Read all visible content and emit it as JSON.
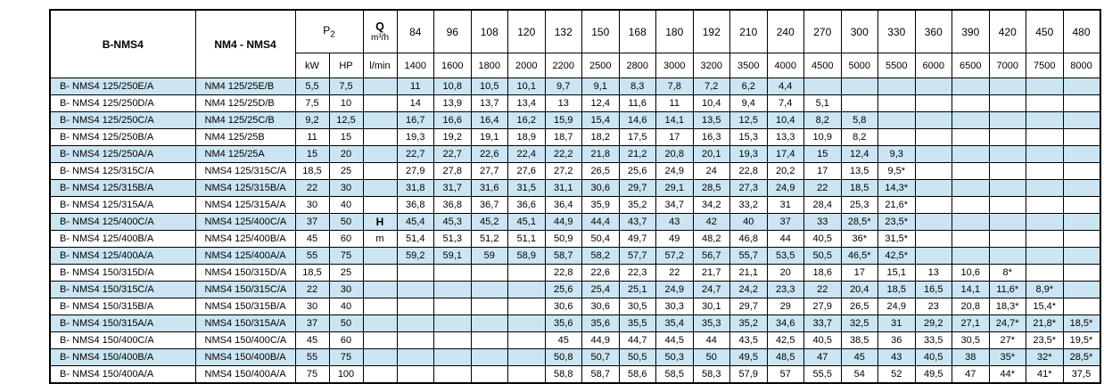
{
  "table": {
    "colors": {
      "row_alt": "#cbe5f2",
      "row_plain": "#ffffff",
      "border": "#000000",
      "header_bg": "#ffffff"
    },
    "header": {
      "model_b_label": "B-NMS4",
      "model_nm_label": "NM4 - NMS4",
      "p2_main": "P",
      "p2_sub": "2",
      "kw_label": "kW",
      "hp_label": "HP",
      "q_label": "Q",
      "q_unit": "m³/h",
      "lmin_label": "l/min",
      "flow_m3h": [
        "84",
        "96",
        "108",
        "120",
        "132",
        "150",
        "168",
        "180",
        "192",
        "210",
        "240",
        "270",
        "300",
        "330",
        "360",
        "390",
        "420",
        "450",
        "480"
      ],
      "flow_lmin": [
        "1400",
        "1600",
        "1800",
        "2000",
        "2200",
        "2500",
        "2800",
        "3000",
        "3200",
        "3500",
        "4000",
        "4500",
        "5000",
        "5500",
        "6000",
        "6500",
        "7000",
        "7500",
        "8000"
      ]
    },
    "head_meters": {
      "label": "H",
      "unit": "m",
      "label_row": 8,
      "unit_row": 9
    },
    "rows": [
      {
        "model_b": "B- NMS4 125/250E/A",
        "model_nm": "NM4 125/25E/B",
        "kw": "5,5",
        "hp": "7,5",
        "values": [
          "11",
          "10,8",
          "10,5",
          "10,1",
          "9,7",
          "9,1",
          "8,3",
          "7,8",
          "7,2",
          "6,2",
          "4,4",
          "",
          "",
          "",
          "",
          "",
          "",
          "",
          ""
        ]
      },
      {
        "model_b": "B- NMS4 125/250D/A",
        "model_nm": "NM4 125/25D/B",
        "kw": "7,5",
        "hp": "10",
        "values": [
          "14",
          "13,9",
          "13,7",
          "13,4",
          "13",
          "12,4",
          "11,6",
          "11",
          "10,4",
          "9,4",
          "7,4",
          "5,1",
          "",
          "",
          "",
          "",
          "",
          "",
          ""
        ]
      },
      {
        "model_b": "B- NMS4 125/250C/A",
        "model_nm": "NM4 125/25C/B",
        "kw": "9,2",
        "hp": "12,5",
        "values": [
          "16,7",
          "16,6",
          "16,4",
          "16,2",
          "15,9",
          "15,4",
          "14,6",
          "14,1",
          "13,5",
          "12,5",
          "10,4",
          "8,2",
          "5,8",
          "",
          "",
          "",
          "",
          "",
          ""
        ]
      },
      {
        "model_b": "B- NMS4 125/250B/A",
        "model_nm": "NM4 125/25B",
        "kw": "11",
        "hp": "15",
        "values": [
          "19,3",
          "19,2",
          "19,1",
          "18,9",
          "18,7",
          "18,2",
          "17,5",
          "17",
          "16,3",
          "15,3",
          "13,3",
          "10,9",
          "8,2",
          "",
          "",
          "",
          "",
          "",
          ""
        ]
      },
      {
        "model_b": "B- NMS4 125/250A/A",
        "model_nm": "NM4 125/25A",
        "kw": "15",
        "hp": "20",
        "values": [
          "22,7",
          "22,7",
          "22,6",
          "22,4",
          "22,2",
          "21,8",
          "21,2",
          "20,8",
          "20,1",
          "19,3",
          "17,4",
          "15",
          "12,4",
          "9,3",
          "",
          "",
          "",
          "",
          ""
        ]
      },
      {
        "model_b": "B- NMS4 125/315C/A",
        "model_nm": "NMS4 125/315C/A",
        "kw": "18,5",
        "hp": "25",
        "values": [
          "27,9",
          "27,8",
          "27,7",
          "27,6",
          "27,2",
          "26,5",
          "25,6",
          "24,9",
          "24",
          "22,8",
          "20,2",
          "17",
          "13,5",
          "9,5*",
          "",
          "",
          "",
          "",
          ""
        ]
      },
      {
        "model_b": "B- NMS4 125/315B/A",
        "model_nm": "NMS4 125/315B/A",
        "kw": "22",
        "hp": "30",
        "values": [
          "31,8",
          "31,7",
          "31,6",
          "31,5",
          "31,1",
          "30,6",
          "29,7",
          "29,1",
          "28,5",
          "27,3",
          "24,9",
          "22",
          "18,5",
          "14,3*",
          "",
          "",
          "",
          "",
          ""
        ]
      },
      {
        "model_b": "B- NMS4 125/315A/A",
        "model_nm": "NMS4 125/315A/A",
        "kw": "30",
        "hp": "40",
        "values": [
          "36,8",
          "36,8",
          "36,7",
          "36,6",
          "36,4",
          "35,9",
          "35,2",
          "34,7",
          "34,2",
          "33,2",
          "31",
          "28,4",
          "25,3",
          "21,6*",
          "",
          "",
          "",
          "",
          ""
        ]
      },
      {
        "model_b": "B- NMS4 125/400C/A",
        "model_nm": "NMS4 125/400C/A",
        "kw": "37",
        "hp": "50",
        "values": [
          "45,4",
          "45,3",
          "45,2",
          "45,1",
          "44,9",
          "44,4",
          "43,7",
          "43",
          "42",
          "40",
          "37",
          "33",
          "28,5*",
          "23,5*",
          "",
          "",
          "",
          "",
          ""
        ]
      },
      {
        "model_b": "B- NMS4 125/400B/A",
        "model_nm": "NMS4 125/400B/A",
        "kw": "45",
        "hp": "60",
        "values": [
          "51,4",
          "51,3",
          "51,2",
          "51,1",
          "50,9",
          "50,4",
          "49,7",
          "49",
          "48,2",
          "46,8",
          "44",
          "40,5",
          "36*",
          "31,5*",
          "",
          "",
          "",
          "",
          ""
        ]
      },
      {
        "model_b": "B- NMS4 125/400A/A",
        "model_nm": "NMS4 125/400A/A",
        "kw": "55",
        "hp": "75",
        "values": [
          "59,2",
          "59,1",
          "59",
          "58,9",
          "58,7",
          "58,2",
          "57,7",
          "57,2",
          "56,7",
          "55,7",
          "53,5",
          "50,5",
          "46,5*",
          "42,5*",
          "",
          "",
          "",
          "",
          ""
        ]
      },
      {
        "model_b": "B- NMS4 150/315D/A",
        "model_nm": "NMS4 150/315D/A",
        "kw": "18,5",
        "hp": "25",
        "values": [
          "",
          "",
          "",
          "",
          "22,8",
          "22,6",
          "22,3",
          "22",
          "21,7",
          "21,1",
          "20",
          "18,6",
          "17",
          "15,1",
          "13",
          "10,6",
          "8*",
          "",
          ""
        ]
      },
      {
        "model_b": "B- NMS4 150/315C/A",
        "model_nm": "NMS4 150/315C/A",
        "kw": "22",
        "hp": "30",
        "values": [
          "",
          "",
          "",
          "",
          "25,6",
          "25,4",
          "25,1",
          "24,9",
          "24,7",
          "24,2",
          "23,3",
          "22",
          "20,4",
          "18,5",
          "16,5",
          "14,1",
          "11,6*",
          "8,9*",
          ""
        ]
      },
      {
        "model_b": "B- NMS4 150/315B/A",
        "model_nm": "NMS4 150/315B/A",
        "kw": "30",
        "hp": "40",
        "values": [
          "",
          "",
          "",
          "",
          "30,6",
          "30,6",
          "30,5",
          "30,3",
          "30,1",
          "29,7",
          "29",
          "27,9",
          "26,5",
          "24,9",
          "23",
          "20,8",
          "18,3*",
          "15,4*",
          ""
        ]
      },
      {
        "model_b": "B- NMS4 150/315A/A",
        "model_nm": "NMS4 150/315A/A",
        "kw": "37",
        "hp": "50",
        "values": [
          "",
          "",
          "",
          "",
          "35,6",
          "35,6",
          "35,5",
          "35,4",
          "35,3",
          "35,2",
          "34,6",
          "33,7",
          "32,5",
          "31",
          "29,2",
          "27,1",
          "24,7*",
          "21,8*",
          "18,5*"
        ]
      },
      {
        "model_b": "B- NMS4 150/400C/A",
        "model_nm": "NMS4 150/400C/A",
        "kw": "45",
        "hp": "60",
        "values": [
          "",
          "",
          "",
          "",
          "45",
          "44,9",
          "44,7",
          "44,5",
          "44",
          "43,5",
          "42,5",
          "40,5",
          "38,5",
          "36",
          "33,5",
          "30,5",
          "27*",
          "23,5*",
          "19,5*"
        ]
      },
      {
        "model_b": "B- NMS4 150/400B/A",
        "model_nm": "NMS4 150/400B/A",
        "kw": "55",
        "hp": "75",
        "values": [
          "",
          "",
          "",
          "",
          "50,8",
          "50,7",
          "50,5",
          "50,3",
          "50",
          "49,5",
          "48,5",
          "47",
          "45",
          "43",
          "40,5",
          "38",
          "35*",
          "32*",
          "28,5*"
        ]
      },
      {
        "model_b": "B- NMS4 150/400A/A",
        "model_nm": "NMS4 150/400A/A",
        "kw": "75",
        "hp": "100",
        "values": [
          "",
          "",
          "",
          "",
          "58,8",
          "58,7",
          "58,6",
          "58,5",
          "58,3",
          "57,9",
          "57",
          "55,5",
          "54",
          "52",
          "49,5",
          "47",
          "44*",
          "41*",
          "37,5"
        ]
      }
    ]
  }
}
